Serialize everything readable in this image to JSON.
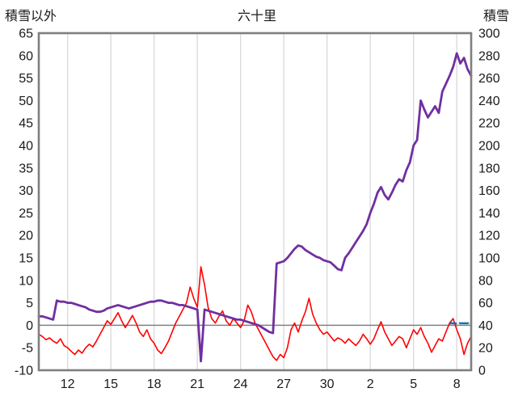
{
  "chart_data": {
    "type": "line",
    "title": "六十里",
    "left_axis": {
      "label": "積雪以外",
      "min": -10,
      "max": 65,
      "ticks": [
        65,
        60,
        55,
        50,
        45,
        40,
        35,
        30,
        25,
        20,
        15,
        10,
        5,
        0,
        -5,
        -10
      ]
    },
    "right_axis": {
      "label": "積雪",
      "min": 0,
      "max": 300,
      "ticks": [
        300,
        280,
        260,
        240,
        220,
        200,
        180,
        160,
        140,
        120,
        100,
        80,
        60,
        40,
        20,
        0
      ]
    },
    "x_axis": {
      "min": 10,
      "max": 40,
      "tick_days": [
        12,
        15,
        18,
        21,
        24,
        27,
        30,
        33,
        36,
        39
      ],
      "tick_labels": [
        "12",
        "15",
        "18",
        "21",
        "24",
        "27",
        "30",
        "2",
        "5",
        "8"
      ]
    },
    "grid_color": "#d9d9d9",
    "border_color": "#7f7f7f",
    "zero_line": {
      "axis": "left",
      "value": 0,
      "color": "#808080"
    },
    "background": "#ffffff",
    "series": [
      {
        "id": "red",
        "axis": "left",
        "color": "#ff0000",
        "width": 1.6,
        "segments": [
          {
            "x_start": 10.0,
            "x_step": 0.25,
            "values": [
              -2.0,
              -2.5,
              -3.2,
              -2.8,
              -3.5,
              -4.0,
              -3.0,
              -4.5,
              -5.0,
              -5.8,
              -6.5,
              -5.5,
              -6.2,
              -5.0,
              -4.2,
              -4.8,
              -3.5,
              -2.0,
              -0.5,
              1.0,
              0.2,
              1.5,
              2.8,
              1.0,
              -0.5,
              0.8,
              2.2,
              0.5,
              -1.5,
              -2.5,
              -1.0,
              -3.0,
              -4.0,
              -5.5,
              -6.3,
              -5.0,
              -3.5,
              -1.5,
              0.5,
              2.0,
              3.5,
              5.0,
              8.5,
              6.0,
              4.0,
              13.0,
              9.0,
              4.0,
              1.5,
              0.5,
              2.0,
              3.2,
              1.0,
              0.0,
              1.5,
              0.5,
              -0.5,
              1.0,
              4.5,
              3.0,
              0.5,
              -1.0,
              -2.5,
              -4.0,
              -5.5,
              -7.0,
              -7.8,
              -6.5,
              -7.2,
              -5.0,
              -1.0,
              0.5,
              -1.5,
              1.0,
              3.0,
              6.0,
              2.5,
              0.5,
              -1.0,
              -2.0,
              -1.5,
              -2.5,
              -3.5,
              -2.8,
              -3.2,
              -4.0,
              -3.0,
              -3.8,
              -4.5,
              -3.5,
              -2.0,
              -3.0,
              -4.2,
              -3.0,
              -1.0,
              0.8,
              -1.5,
              -3.0,
              -4.5,
              -3.5,
              -2.5,
              -3.0,
              -5.0,
              -3.0,
              -1.0,
              -2.0,
              -0.5,
              -2.5,
              -4.0,
              -6.0,
              -4.5,
              -3.0,
              -3.5,
              -1.5,
              0.5,
              1.5,
              -1.0,
              -3.0,
              -6.5,
              -4.0,
              -2.5
            ]
          }
        ]
      },
      {
        "id": "purple",
        "axis": "right",
        "color": "#7030a0",
        "width": 2.8,
        "segments": [
          {
            "x_start": 10.0,
            "x_step": 0.25,
            "values": [
              48,
              48,
              47,
              46,
              45,
              62,
              61,
              61,
              60,
              60,
              59,
              58,
              57,
              56,
              54,
              53,
              52,
              52,
              53,
              55,
              56,
              57,
              58,
              57,
              56,
              55,
              56,
              57,
              58,
              59,
              60,
              61,
              61,
              62,
              62,
              61,
              60,
              60,
              59,
              58,
              58,
              57,
              56,
              55,
              54,
              8,
              54,
              53,
              52,
              51,
              50,
              49,
              48,
              47,
              46,
              45,
              45,
              44,
              43,
              42,
              41,
              40,
              38,
              36,
              34,
              33,
              95,
              96,
              97,
              100,
              104,
              108,
              111,
              110,
              107,
              105,
              103,
              101,
              100,
              98,
              97,
              96,
              93,
              90,
              89,
              100,
              104,
              109,
              114,
              119,
              124,
              130,
              140,
              148,
              158,
              163,
              156,
              152,
              158,
              165,
              170,
              168,
              178,
              185,
              200,
              205,
              240,
              232,
              225,
              230,
              235,
              229,
              248,
              255,
              262,
              270,
              282,
              273,
              278,
              268,
              262
            ]
          }
        ]
      },
      {
        "id": "blue",
        "axis": "left",
        "color": "#0070c0",
        "width": 2.2,
        "segments": [
          {
            "x_start": 38.55,
            "x_step": 0.1,
            "values": [
              0.4,
              0.5,
              0.4,
              0.5,
              0.4
            ]
          },
          {
            "x_start": 39.2,
            "x_step": 0.1,
            "values": [
              0.5,
              0.4,
              0.5,
              0.4,
              0.5,
              0.4,
              0.5
            ]
          }
        ]
      }
    ]
  }
}
